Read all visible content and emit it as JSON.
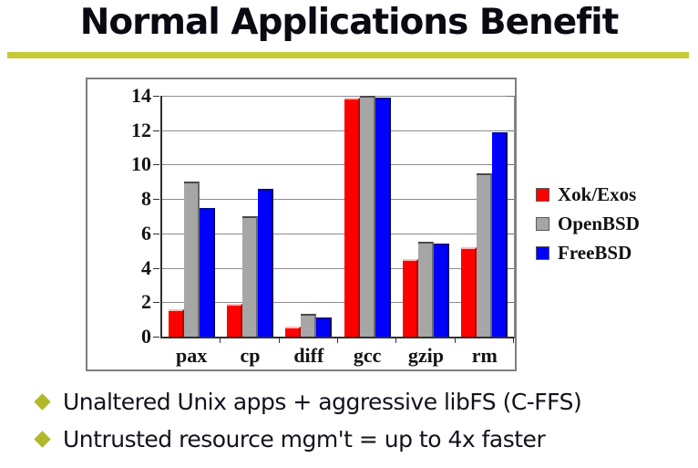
{
  "slide": {
    "title": "Normal Applications Benefit",
    "accent_color": "#c5cb37",
    "bullet_color": "#b2b82c",
    "bullets": [
      "Unaltered Unix apps + aggressive libFS (C-FFS)",
      "Untrusted resource mgm't = up to 4x faster"
    ]
  },
  "chart_data": {
    "type": "bar",
    "title": "",
    "xlabel": "",
    "ylabel": "",
    "categories": [
      "pax",
      "cp",
      "diff",
      "gcc",
      "gzip",
      "rm"
    ],
    "series": [
      {
        "name": "Xok/Exos",
        "color": "#ff0000",
        "values": [
          1.6,
          1.9,
          0.6,
          13.9,
          4.5,
          5.2
        ]
      },
      {
        "name": "OpenBSD",
        "color": "#a6a6a6",
        "values": [
          9.0,
          7.0,
          1.3,
          14.0,
          5.5,
          9.5
        ]
      },
      {
        "name": "FreeBSD",
        "color": "#0000ff",
        "values": [
          7.5,
          8.6,
          1.1,
          13.9,
          5.4,
          11.9
        ]
      }
    ],
    "ylim": [
      0,
      14
    ],
    "yticks": [
      0,
      2,
      4,
      6,
      8,
      10,
      12,
      14
    ],
    "grid": true,
    "legend_position": "right"
  }
}
